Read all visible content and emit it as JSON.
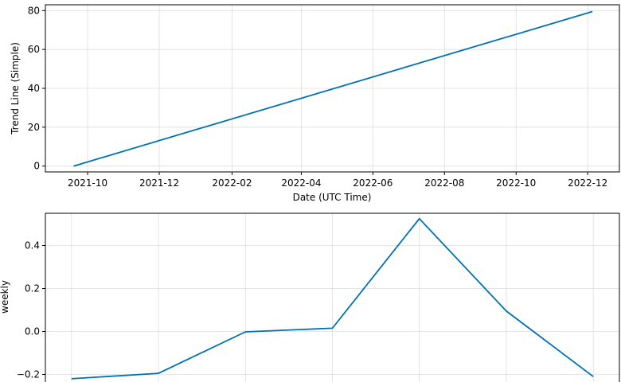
{
  "chart_data": [
    {
      "type": "line",
      "title": "",
      "xlabel": "Date (UTC Time)",
      "ylabel": "Trend Line (Simple)",
      "ylim": [
        -3,
        83
      ],
      "xlim": [
        "2021-08-26",
        "2022-12-28"
      ],
      "grid": true,
      "x_ticks": [
        "2021-10",
        "2021-12",
        "2022-02",
        "2022-04",
        "2022-06",
        "2022-08",
        "2022-10",
        "2022-12"
      ],
      "y_ticks": [
        0,
        20,
        40,
        60,
        80
      ],
      "series": [
        {
          "color": "#0072B2",
          "x": [
            "2021-09-19",
            "2022-12-05"
          ],
          "y": [
            0,
            79.5
          ]
        }
      ]
    },
    {
      "type": "line",
      "title": "",
      "xlabel": "",
      "ylabel": "weekly",
      "ylim": [
        -0.25,
        0.55
      ],
      "grid": true,
      "y_ticks": [
        -0.2,
        0.0,
        0.2,
        0.4
      ],
      "series": [
        {
          "color": "#0072B2",
          "x": [
            0,
            1,
            2,
            3,
            4,
            5,
            6
          ],
          "y": [
            -0.22,
            -0.195,
            -0.002,
            0.015,
            0.525,
            0.095,
            -0.21
          ]
        }
      ]
    }
  ]
}
